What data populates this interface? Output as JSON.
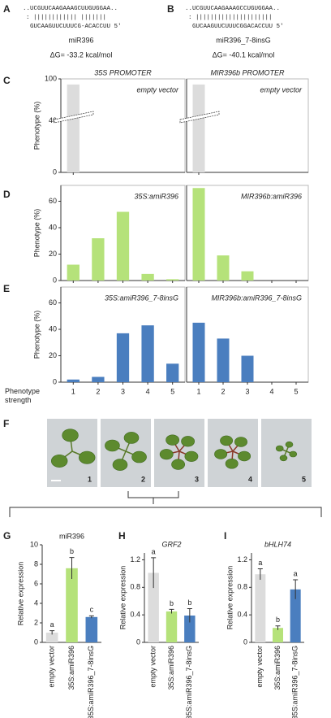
{
  "panel_letters": [
    "A",
    "B",
    "C",
    "D",
    "E",
    "F",
    "G",
    "H",
    "I"
  ],
  "sequences": [
    {
      "top": "..UCGUUCAAGAAAGCUUGUGGAA..",
      "pairs": ":  |||||||||||| |||||||",
      "bottom": "GUCAAGUUCUUUCG-ACACCUU 5'",
      "name": "miR396",
      "energy": "ΔG= -33.2 kcal/mol"
    },
    {
      "top": "..UCGUUCAAGAAAGCCUGUGGAA..",
      "pairs": ":  |||||||||||||||||||||",
      "bottom": "GUCAAGUUCUUUCGGACACCUU 5'",
      "name": "miR396_7-8insG",
      "energy": "ΔG= -40.1 kcal/mol"
    }
  ],
  "photos": {
    "labels": [
      "1",
      "2",
      "3",
      "4",
      "5"
    ]
  },
  "chart_data": [
    {
      "type": "bar",
      "title": "35S PROMOTER",
      "label": "empty vector",
      "ylabel": "Phenotype (%)",
      "values": [
        92
      ],
      "ylim": [
        0,
        100
      ],
      "yticks": [
        0,
        40,
        100
      ],
      "broken_axis": true,
      "color": "#dcdcdc"
    },
    {
      "type": "bar",
      "title": "MIR396b PROMOTER",
      "label": "empty vector",
      "values": [
        92
      ],
      "ylim": [
        0,
        100
      ],
      "broken_axis": true,
      "color": "#dcdcdc"
    },
    {
      "type": "bar",
      "label": "35S:amiR396",
      "ylabel": "Phenotype (%)",
      "values": [
        12,
        32,
        52,
        5,
        1
      ],
      "ylim": [
        0,
        72
      ],
      "yticks": [
        0,
        20,
        40,
        60
      ],
      "color": "#b5e27a"
    },
    {
      "type": "bar",
      "label": "MIR396b:amiR396",
      "values": [
        70,
        19,
        7,
        0,
        0
      ],
      "ylim": [
        0,
        72
      ],
      "color": "#b5e27a"
    },
    {
      "type": "bar",
      "label": "35S:amiR396_7-8insG",
      "ylabel": "Phenotype (%)",
      "xlabel": "Phenotype strength",
      "categories": [
        "1",
        "2",
        "3",
        "4",
        "5"
      ],
      "values": [
        2,
        4,
        37,
        43,
        14
      ],
      "ylim": [
        0,
        72
      ],
      "yticks": [
        0,
        20,
        40,
        60
      ],
      "color": "#4a7ebf"
    },
    {
      "type": "bar",
      "label": "MIR396b:amiR396_7-8insG",
      "categories": [
        "1",
        "2",
        "3",
        "4",
        "5"
      ],
      "values": [
        45,
        33,
        20,
        0,
        0
      ],
      "ylim": [
        0,
        72
      ],
      "color": "#4a7ebf"
    },
    {
      "type": "bar",
      "title": "miR396",
      "ylabel": "Relative expression",
      "categories": [
        "empty vector",
        "35S:amiR396",
        "35S:amiR396_7-8insG"
      ],
      "values": [
        1,
        7.6,
        2.6
      ],
      "errors": [
        0.2,
        1.1,
        0.12
      ],
      "letters": [
        "a",
        "b",
        "c"
      ],
      "ylim": [
        0,
        10
      ],
      "yticks": [
        0,
        2,
        4,
        6,
        8,
        10
      ],
      "colors": [
        "#dcdcdc",
        "#b5e27a",
        "#4a7ebf"
      ]
    },
    {
      "type": "bar",
      "title": "GRF2",
      "ylabel": "Relative expression",
      "categories": [
        "empty vector",
        "35S:amiR396",
        "35S:amiR396_7-8insG"
      ],
      "values": [
        1.01,
        0.45,
        0.39
      ],
      "errors": [
        0.22,
        0.03,
        0.1
      ],
      "letters": [
        "a",
        "b",
        "b"
      ],
      "ylim": [
        0,
        1.3
      ],
      "yticks": [
        0,
        0.4,
        0.8,
        1.2
      ],
      "colors": [
        "#dcdcdc",
        "#b5e27a",
        "#4a7ebf"
      ]
    },
    {
      "type": "bar",
      "title": "bHLH74",
      "ylabel": "Relative expression",
      "categories": [
        "empty vector",
        "35S:amiR396",
        "35S:amiR396_7-8insG"
      ],
      "values": [
        0.99,
        0.21,
        0.77
      ],
      "errors": [
        0.08,
        0.03,
        0.14
      ],
      "letters": [
        "a",
        "b",
        "a"
      ],
      "ylim": [
        0,
        1.3
      ],
      "yticks": [
        0,
        0.4,
        0.8,
        1.2
      ],
      "colors": [
        "#dcdcdc",
        "#b5e27a",
        "#4a7ebf"
      ]
    }
  ]
}
